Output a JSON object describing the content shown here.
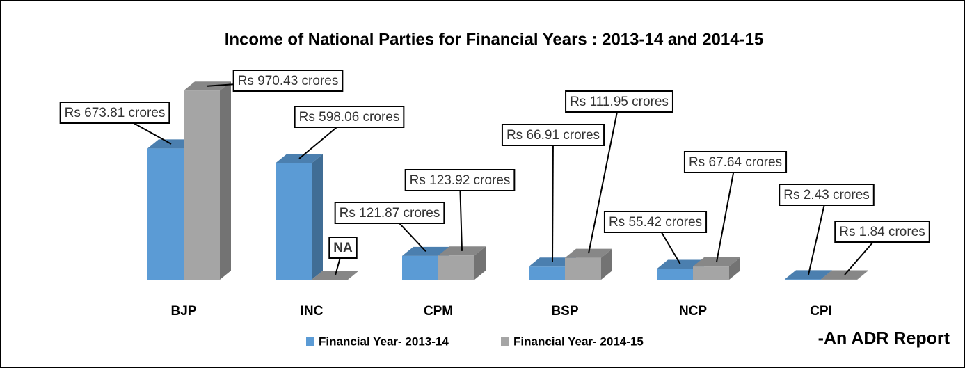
{
  "chart_data": {
    "type": "bar3d",
    "title": "Income of National Parties for Financial Years : 2013-14 and 2014-15",
    "categories": [
      "BJP",
      "INC",
      "CPM",
      "BSP",
      "NCP",
      "CPI"
    ],
    "series": [
      {
        "name": "Financial Year- 2013-14",
        "color": "#5b9bd5",
        "values": [
          673.81,
          598.06,
          121.87,
          66.91,
          55.42,
          2.43
        ],
        "value_labels": [
          "Rs 673.81 crores",
          "Rs 598.06 crores",
          "Rs 121.87 crores",
          "Rs 66.91 crores",
          "Rs 55.42 crores",
          "Rs 2.43 crores"
        ]
      },
      {
        "name": "Financial Year- 2014-15",
        "color": "#a5a5a5",
        "values": [
          970.43,
          null,
          123.92,
          111.95,
          67.64,
          1.84
        ],
        "value_labels": [
          "Rs 970.43 crores",
          "NA",
          "Rs 123.92 crores",
          "Rs 111.95 crores",
          "Rs 67.64 crores",
          "Rs 1.84 crores"
        ]
      }
    ],
    "annotation": "-An ADR Report",
    "legend": "bottom"
  }
}
